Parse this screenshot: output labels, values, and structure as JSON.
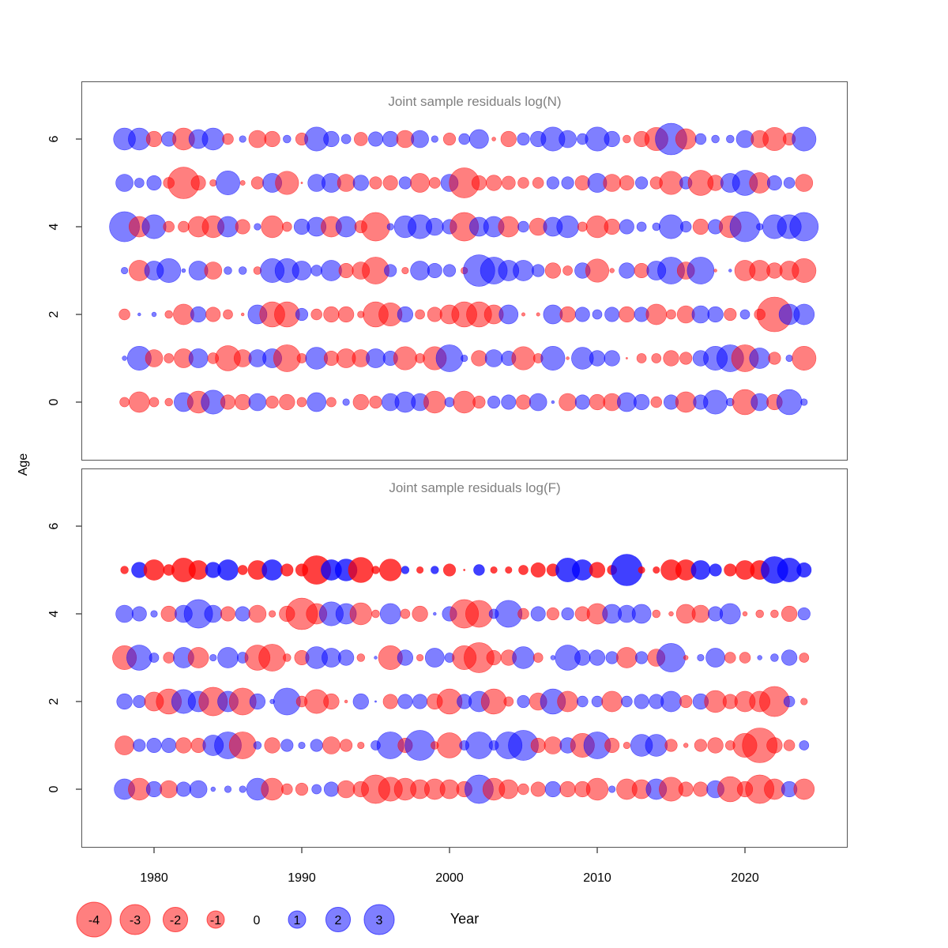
{
  "chart_data": [
    {
      "type": "scatter",
      "title": "Joint sample residuals log(N)",
      "xlabel": "Year",
      "ylabel": "Age",
      "xlim": [
        1975,
        2027
      ],
      "ylim": [
        -1.3,
        7.3
      ],
      "xticks": [
        1980,
        1990,
        2000,
        2010,
        2020
      ],
      "yticks": [
        0,
        2,
        4,
        6
      ],
      "years": [
        1978,
        1979,
        1980,
        1981,
        1982,
        1983,
        1984,
        1985,
        1986,
        1987,
        1988,
        1989,
        1990,
        1991,
        1992,
        1993,
        1994,
        1995,
        1996,
        1997,
        1998,
        1999,
        2000,
        2001,
        2002,
        2003,
        2004,
        2005,
        2006,
        2007,
        2008,
        2009,
        2010,
        2011,
        2012,
        2013,
        2014,
        2015,
        2016,
        2017,
        2018,
        2019,
        2020,
        2021,
        2022,
        2023,
        2024
      ],
      "ages": [
        0,
        1,
        2,
        3,
        4,
        5,
        6
      ],
      "residuals": {
        "0": [
          -0.3,
          -1.4,
          -0.3,
          -0.2,
          1.2,
          -1.6,
          1.9,
          -0.7,
          -0.8,
          1.0,
          -0.5,
          -0.8,
          -0.3,
          1.2,
          -0.3,
          0.15,
          -0.8,
          -0.5,
          1.0,
          1.4,
          1.0,
          -1.6,
          0.3,
          -1.6,
          -0.5,
          0.5,
          0.7,
          -0.7,
          1.0,
          0.03,
          -1.0,
          0.7,
          -0.8,
          -1.0,
          1.2,
          0.8,
          -0.4,
          0.7,
          -1.4,
          0.7,
          1.9,
          0.2,
          -2.1,
          1.0,
          -0.8,
          2.1,
          0.15
        ],
        "1": [
          0.07,
          1.9,
          -1.0,
          -0.3,
          -1.2,
          1.2,
          -0.4,
          -2.1,
          -1.0,
          1.0,
          1.2,
          -2.4,
          -0.3,
          1.6,
          -0.7,
          -1.2,
          -1.0,
          1.2,
          0.7,
          -1.8,
          -0.3,
          -1.8,
          2.4,
          0.15,
          -0.8,
          1.0,
          0.7,
          -1.8,
          -0.3,
          1.9,
          -0.03,
          1.6,
          0.8,
          0.8,
          -0.01,
          -0.3,
          -0.3,
          -0.8,
          -0.5,
          0.8,
          1.9,
          2.4,
          -2.4,
          1.4,
          -0.5,
          0.15,
          -1.9
        ],
        "2": [
          -0.4,
          0.03,
          0.07,
          -0.2,
          -1.4,
          0.8,
          -0.7,
          -0.3,
          -0.03,
          1.2,
          -2.1,
          -2.1,
          0.5,
          -0.4,
          -0.8,
          -0.8,
          -0.15,
          -2.1,
          -1.8,
          0.8,
          -0.3,
          -0.7,
          -1.2,
          -2.1,
          -2.1,
          -1.2,
          1.2,
          -0.04,
          -0.04,
          1.2,
          -0.8,
          0.7,
          0.3,
          0.7,
          -0.8,
          0.7,
          -1.4,
          -0.3,
          -1.0,
          1.0,
          0.8,
          -0.5,
          0.3,
          -0.4,
          -4.0,
          1.4,
          1.4
        ],
        "3": [
          0.15,
          -1.4,
          1.2,
          1.9,
          0.05,
          1.2,
          -1.0,
          0.2,
          0.2,
          -0.2,
          1.9,
          1.9,
          1.2,
          0.4,
          1.4,
          -0.7,
          -1.0,
          -2.4,
          0.5,
          -0.15,
          1.2,
          0.7,
          0.5,
          -0.15,
          3.3,
          2.4,
          1.4,
          1.4,
          0.5,
          -0.8,
          -0.3,
          0.8,
          -1.8,
          -0.07,
          0.8,
          -0.7,
          1.2,
          2.4,
          -1.0,
          2.4,
          -0.03,
          0.03,
          -1.4,
          -1.4,
          -0.8,
          -1.2,
          -1.9
        ],
        "4": [
          3.0,
          -1.4,
          1.9,
          -0.4,
          -0.4,
          -1.4,
          -1.6,
          1.4,
          -0.7,
          0.15,
          -1.6,
          -0.3,
          0.8,
          1.2,
          -1.4,
          1.4,
          -0.5,
          -2.7,
          0.15,
          1.6,
          1.9,
          1.0,
          0.7,
          -2.7,
          1.2,
          1.4,
          -1.4,
          0.4,
          -1.0,
          1.2,
          1.6,
          -0.3,
          -1.6,
          -0.8,
          0.7,
          0.3,
          0.2,
          1.9,
          0.4,
          -0.8,
          0.7,
          -1.6,
          3.0,
          0.15,
          1.9,
          1.9,
          2.7
        ],
        "5": [
          1.0,
          0.3,
          0.7,
          -0.4,
          -3.3,
          -0.7,
          -0.15,
          1.9,
          -0.08,
          -0.5,
          1.2,
          -1.8,
          -0.01,
          1.0,
          1.2,
          -1.0,
          0.8,
          -0.5,
          -0.7,
          0.5,
          -1.2,
          -0.4,
          1.0,
          -3.0,
          -0.7,
          -0.8,
          -0.6,
          -0.4,
          -0.4,
          0.5,
          0.5,
          -0.7,
          1.2,
          -1.0,
          -0.7,
          0.5,
          -0.5,
          -1.8,
          0.5,
          -2.1,
          -0.8,
          1.2,
          2.1,
          -1.4,
          0.7,
          0.4,
          -1.0
        ],
        "6": [
          1.6,
          1.6,
          -0.8,
          0.7,
          -1.6,
          1.2,
          1.6,
          -0.4,
          0.15,
          -1.0,
          -0.8,
          0.2,
          -0.5,
          1.9,
          0.8,
          0.3,
          -0.6,
          0.7,
          0.8,
          -1.0,
          1.0,
          0.15,
          -0.5,
          0.4,
          1.2,
          -0.05,
          -0.8,
          0.5,
          0.8,
          1.9,
          1.0,
          0.4,
          1.9,
          0.8,
          -0.2,
          -0.8,
          -1.8,
          3.3,
          -1.4,
          0.4,
          0.2,
          0.2,
          1.0,
          -1.0,
          -1.8,
          -0.5,
          1.9
        ]
      }
    },
    {
      "type": "scatter",
      "title": "Joint sample residuals log(F)",
      "xlabel": "Year",
      "ylabel": "Age",
      "xlim": [
        1975,
        2027
      ],
      "ylim": [
        -1.3,
        7.3
      ],
      "xticks": [
        1980,
        1990,
        2000,
        2010,
        2020
      ],
      "yticks": [
        0,
        2,
        4,
        6
      ],
      "years": [
        1978,
        1979,
        1980,
        1981,
        1982,
        1983,
        1984,
        1985,
        1986,
        1987,
        1988,
        1989,
        1990,
        1991,
        1992,
        1993,
        1994,
        1995,
        1996,
        1997,
        1998,
        1999,
        2000,
        2001,
        2002,
        2003,
        2004,
        2005,
        2006,
        2007,
        2008,
        2009,
        2010,
        2011,
        2012,
        2013,
        2014,
        2015,
        2016,
        2017,
        2018,
        2019,
        2020,
        2021,
        2022,
        2023,
        2024
      ],
      "ages": [
        0,
        1,
        2,
        3,
        4,
        5
      ],
      "residuals": {
        "0": [
          1.4,
          -1.6,
          0.8,
          -1.0,
          0.7,
          1.0,
          0.07,
          0.15,
          0.15,
          1.6,
          -1.6,
          -0.4,
          -0.5,
          0.3,
          0.7,
          -1.0,
          -0.8,
          -2.7,
          -1.9,
          -1.6,
          -1.2,
          -1.4,
          -1.2,
          -0.8,
          2.7,
          -1.6,
          -1.2,
          -0.4,
          -0.7,
          0.8,
          -0.8,
          -0.8,
          -1.6,
          0.15,
          -1.4,
          -1.2,
          1.4,
          -1.9,
          -0.7,
          -0.7,
          1.0,
          -2.1,
          -0.8,
          -2.7,
          -1.4,
          0.8,
          -1.4
        ],
        "1": [
          -1.2,
          0.5,
          0.7,
          0.7,
          -0.8,
          -0.7,
          1.4,
          2.4,
          -2.4,
          0.2,
          -0.8,
          0.5,
          0.15,
          0.5,
          -1.0,
          -0.5,
          -0.15,
          0.3,
          2.4,
          -0.7,
          3.0,
          -0.2,
          -2.1,
          0.3,
          2.4,
          0.3,
          2.4,
          3.0,
          -0.7,
          -1.0,
          0.8,
          -1.9,
          2.4,
          -0.7,
          -0.15,
          1.6,
          1.6,
          -0.5,
          -0.07,
          -0.5,
          -0.8,
          -0.3,
          -1.9,
          -4.0,
          -0.8,
          -0.4,
          0.3
        ],
        "2": [
          0.8,
          0.5,
          -1.2,
          -2.1,
          1.9,
          1.4,
          -2.7,
          1.4,
          -2.4,
          0.8,
          0.07,
          2.4,
          -0.4,
          -1.9,
          -0.8,
          -0.03,
          0.8,
          0.01,
          -0.7,
          0.7,
          0.7,
          -0.8,
          -2.1,
          0.7,
          1.4,
          -2.1,
          -0.3,
          0.5,
          -1.0,
          2.1,
          -1.4,
          0.4,
          0.4,
          -1.4,
          0.4,
          0.7,
          0.7,
          1.4,
          -0.5,
          0.8,
          -1.6,
          -0.7,
          -1.4,
          -1.4,
          -3.0,
          0.4,
          -0.15
        ],
        "3": [
          -1.9,
          2.1,
          0.3,
          -0.4,
          1.4,
          -1.4,
          0.15,
          1.4,
          0.4,
          -2.1,
          -2.4,
          -0.2,
          -0.7,
          1.6,
          1.2,
          0.8,
          -0.2,
          0.03,
          -1.9,
          0.8,
          -0.15,
          1.2,
          0.3,
          -1.9,
          -3.0,
          -0.7,
          -0.8,
          1.6,
          -0.3,
          0.07,
          2.1,
          0.8,
          0.8,
          0.5,
          -1.4,
          0.5,
          -1.0,
          2.7,
          -0.07,
          0.15,
          1.2,
          -0.4,
          -0.4,
          0.07,
          0.2,
          0.8,
          -0.3
        ],
        "4": [
          1.0,
          0.7,
          0.15,
          -0.8,
          1.0,
          2.7,
          1.0,
          -0.7,
          0.7,
          -1.0,
          -0.15,
          -0.8,
          -3.3,
          -1.4,
          1.9,
          1.4,
          -1.6,
          -0.2,
          1.4,
          -0.3,
          -0.8,
          0.03,
          0.7,
          -2.7,
          -2.4,
          0.3,
          2.4,
          -0.4,
          0.7,
          -0.5,
          0.5,
          -0.7,
          -1.4,
          1.2,
          1.0,
          1.2,
          -0.2,
          -0.07,
          -1.2,
          -1.0,
          0.7,
          1.4,
          -0.07,
          -0.2,
          -0.2,
          -0.8,
          0.5
        ],
        "5": [
          -0.2,
          0.8,
          -1.4,
          -0.4,
          -1.9,
          -1.2,
          0.8,
          1.4,
          -0.3,
          -1.2,
          1.4,
          -0.5,
          -0.5,
          -2.7,
          1.4,
          1.6,
          -2.1,
          -0.2,
          -1.6,
          0.2,
          -0.15,
          0.2,
          -0.5,
          -0.01,
          0.4,
          -0.15,
          -0.15,
          -0.3,
          -0.7,
          -0.5,
          1.9,
          1.4,
          -0.8,
          -0.3,
          3.3,
          -0.15,
          -0.15,
          -1.4,
          -1.4,
          1.2,
          0.5,
          -0.5,
          -1.2,
          -1.2,
          2.4,
          1.9,
          0.7
        ]
      }
    }
  ],
  "axis": {
    "ylabel": "Age",
    "xlabel": "Year"
  },
  "legend": {
    "position": "bottom",
    "values": [
      -4,
      -3,
      -2,
      -1,
      0,
      1,
      2,
      3
    ],
    "labels": [
      "-4",
      "-3",
      "-2",
      "-1",
      "0",
      "1",
      "2",
      "3"
    ]
  },
  "colors": {
    "negative": "#ff0000",
    "positive": "#0000ff",
    "title": "#808080"
  }
}
